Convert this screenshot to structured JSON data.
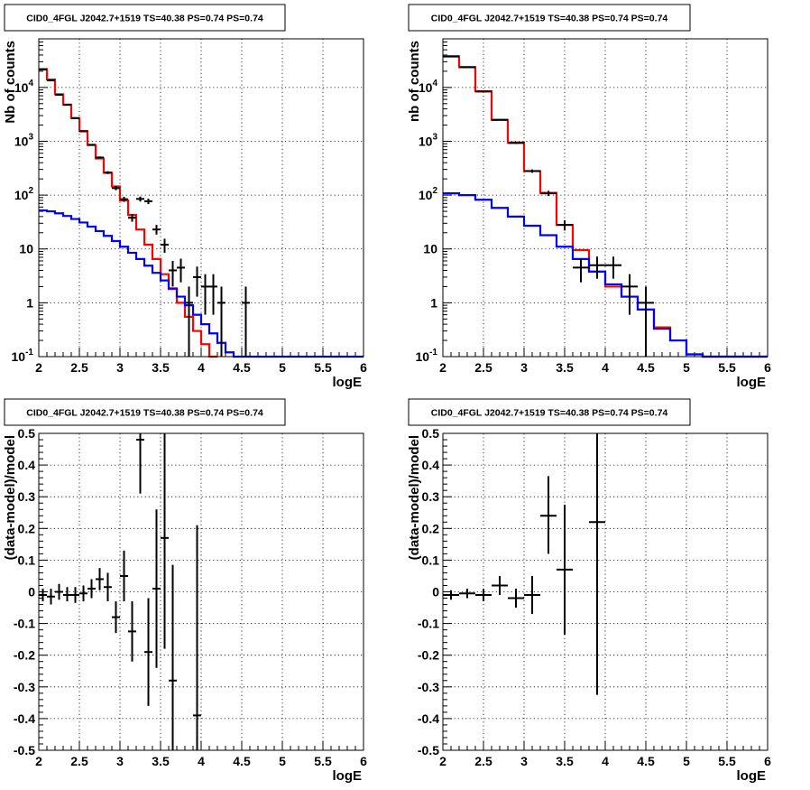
{
  "chart_data": [
    {
      "id": "top-left",
      "type": "histogram",
      "title": "CID0_4FGL J2042.7+1519 TS=40.38 PS=0.74 PS=0.74",
      "xlabel": "logE",
      "ylabel": "Nb of counts",
      "xlim": [
        2,
        6
      ],
      "ylim": [
        0.1,
        80000
      ],
      "yscale": "log",
      "grid": true,
      "x_ticks": [
        "2",
        "2.5",
        "3",
        "3.5",
        "4",
        "4.5",
        "5",
        "5.5",
        "6"
      ],
      "y_ticks": [
        {
          "base": "10",
          "exp": "-1"
        },
        {
          "base": "1",
          "exp": ""
        },
        {
          "base": "10",
          "exp": ""
        },
        {
          "base": "10",
          "exp": "2"
        },
        {
          "base": "10",
          "exp": "3"
        },
        {
          "base": "10",
          "exp": "4"
        }
      ],
      "bin_edges": [
        2.0,
        2.1,
        2.2,
        2.3,
        2.4,
        2.5,
        2.6,
        2.7,
        2.8,
        2.9,
        3.0,
        3.1,
        3.2,
        3.3,
        3.4,
        3.5,
        3.6,
        3.7,
        3.8,
        3.9,
        4.0,
        4.1,
        4.2,
        4.3,
        4.4,
        4.5,
        4.6,
        4.7,
        4.8,
        4.9,
        5.0,
        5.1,
        5.2,
        5.3,
        5.4,
        5.5,
        5.6,
        5.7,
        5.8,
        5.9,
        6.0
      ],
      "series": [
        {
          "color": "#ff0000",
          "kind": "step",
          "values": [
            22000,
            14000,
            7500,
            4800,
            2700,
            1550,
            850,
            480,
            260,
            145,
            80,
            43,
            23,
            12,
            6.5,
            3.4,
            1.8,
            1.0,
            0.55,
            0.3,
            0.17,
            0.1
          ]
        },
        {
          "color": "#0000ff",
          "kind": "step",
          "values": [
            52,
            50,
            46,
            41,
            36,
            31,
            26,
            21.5,
            17.5,
            14,
            11,
            8.5,
            6.5,
            4.9,
            3.6,
            2.6,
            1.85,
            1.3,
            0.9,
            0.6,
            0.4,
            0.27,
            0.18,
            0.12,
            0.1,
            0.1,
            0.1,
            0.1,
            0.1,
            0.1,
            0.1,
            0.1,
            0.1,
            0.1,
            0.1,
            0.1,
            0.1,
            0.1,
            0.1,
            0.1
          ]
        },
        {
          "color": "#000000",
          "kind": "errorbars",
          "xerr": 0.05,
          "points": [
            {
              "x": 2.05,
              "y": 21500,
              "lo": 21300,
              "hi": 21700
            },
            {
              "x": 2.15,
              "y": 13500,
              "lo": 13350,
              "hi": 13650
            },
            {
              "x": 2.25,
              "y": 7300,
              "lo": 7210,
              "hi": 7390
            },
            {
              "x": 2.35,
              "y": 4750,
              "lo": 4680,
              "hi": 4820
            },
            {
              "x": 2.45,
              "y": 2680,
              "lo": 2630,
              "hi": 2730
            },
            {
              "x": 2.55,
              "y": 1530,
              "lo": 1490,
              "hi": 1570
            },
            {
              "x": 2.65,
              "y": 860,
              "lo": 830,
              "hi": 890
            },
            {
              "x": 2.75,
              "y": 500,
              "lo": 478,
              "hi": 522
            },
            {
              "x": 2.85,
              "y": 262,
              "lo": 246,
              "hi": 278
            },
            {
              "x": 2.95,
              "y": 135,
              "lo": 123,
              "hi": 147
            },
            {
              "x": 3.05,
              "y": 84,
              "lo": 75,
              "hi": 93
            },
            {
              "x": 3.15,
              "y": 38,
              "lo": 32,
              "hi": 44
            },
            {
              "x": 3.25,
              "y": 85,
              "lo": 76,
              "hi": 94
            },
            {
              "x": 3.35,
              "y": 77,
              "lo": 68,
              "hi": 86
            },
            {
              "x": 3.45,
              "y": 23,
              "lo": 18.5,
              "hi": 28
            },
            {
              "x": 3.55,
              "y": 12,
              "lo": 8.5,
              "hi": 15.5
            },
            {
              "x": 3.65,
              "y": 4,
              "lo": 2,
              "hi": 6
            },
            {
              "x": 3.75,
              "y": 4.5,
              "lo": 2.4,
              "hi": 6.6
            },
            {
              "x": 3.85,
              "y": 1,
              "lo": 0.1,
              "hi": 2
            },
            {
              "x": 3.95,
              "y": 3,
              "lo": 1.3,
              "hi": 4.7
            },
            {
              "x": 4.05,
              "y": 2,
              "lo": 0.6,
              "hi": 3.4
            },
            {
              "x": 4.15,
              "y": 2,
              "lo": 0.6,
              "hi": 3.4
            },
            {
              "x": 4.25,
              "y": 1,
              "lo": 0.1,
              "hi": 2
            },
            {
              "x": 4.55,
              "y": 1,
              "lo": 0.1,
              "hi": 2
            }
          ]
        }
      ]
    },
    {
      "id": "top-right",
      "type": "histogram",
      "title": "CID0_4FGL J2042.7+1519 TS=40.38 PS=0.74 PS=0.74",
      "xlabel": "logE",
      "ylabel": "nb of counts",
      "xlim": [
        2,
        6
      ],
      "ylim": [
        0.1,
        80000
      ],
      "yscale": "log",
      "grid": true,
      "x_ticks": [
        "2",
        "2.5",
        "3",
        "3.5",
        "4",
        "4.5",
        "5",
        "5.5",
        "6"
      ],
      "y_ticks": [
        {
          "base": "10",
          "exp": "-1"
        },
        {
          "base": "1",
          "exp": ""
        },
        {
          "base": "10",
          "exp": ""
        },
        {
          "base": "10",
          "exp": "2"
        },
        {
          "base": "10",
          "exp": "3"
        },
        {
          "base": "10",
          "exp": "4"
        }
      ],
      "bin_edges": [
        2.0,
        2.2,
        2.4,
        2.6,
        2.8,
        3.0,
        3.2,
        3.4,
        3.6,
        3.8,
        4.0,
        4.2,
        4.4,
        4.6,
        4.8,
        5.0,
        5.2,
        5.4,
        5.6,
        5.8,
        6.0
      ],
      "series": [
        {
          "color": "#ff0000",
          "kind": "step",
          "values": [
            38000,
            24000,
            8500,
            2500,
            950,
            280,
            110,
            28,
            9.5,
            3.8,
            2.0,
            1.3,
            0.75,
            0.35,
            0.2,
            0.11,
            0.1,
            0.1,
            0.1,
            0.1
          ]
        },
        {
          "color": "#0000ff",
          "kind": "step",
          "values": [
            108,
            100,
            82,
            58,
            40,
            27,
            18,
            11,
            6.5,
            3.8,
            2.2,
            1.3,
            0.75,
            0.33,
            0.2,
            0.11,
            0.1,
            0.1,
            0.1,
            0.1
          ]
        },
        {
          "color": "#000000",
          "kind": "errorbars",
          "xerr": 0.1,
          "points": [
            {
              "x": 2.1,
              "y": 37500,
              "lo": 37200,
              "hi": 37800
            },
            {
              "x": 2.3,
              "y": 23700,
              "lo": 23450,
              "hi": 23950
            },
            {
              "x": 2.5,
              "y": 8400,
              "lo": 8250,
              "hi": 8550
            },
            {
              "x": 2.7,
              "y": 2500,
              "lo": 2430,
              "hi": 2570
            },
            {
              "x": 2.9,
              "y": 930,
              "lo": 890,
              "hi": 970
            },
            {
              "x": 3.1,
              "y": 280,
              "lo": 260,
              "hi": 300
            },
            {
              "x": 3.3,
              "y": 108,
              "lo": 96,
              "hi": 120
            },
            {
              "x": 3.5,
              "y": 28,
              "lo": 22,
              "hi": 34
            },
            {
              "x": 3.7,
              "y": 4.5,
              "lo": 2.4,
              "hi": 6.6
            },
            {
              "x": 3.9,
              "y": 5,
              "lo": 2.8,
              "hi": 7.2
            },
            {
              "x": 4.1,
              "y": 5,
              "lo": 2.8,
              "hi": 7.2
            },
            {
              "x": 4.3,
              "y": 2,
              "lo": 0.6,
              "hi": 3.4
            },
            {
              "x": 4.5,
              "y": 1,
              "lo": 0.1,
              "hi": 2
            }
          ]
        }
      ]
    },
    {
      "id": "bottom-left",
      "type": "errorbar",
      "title": "CID0_4FGL J2042.7+1519 TS=40.38 PS=0.74 PS=0.74",
      "xlabel": "logE",
      "ylabel": "(data-model)/model",
      "xlim": [
        2,
        6
      ],
      "ylim": [
        -0.5,
        0.5
      ],
      "yscale": "linear",
      "grid": true,
      "x_ticks": [
        "2",
        "2.5",
        "3",
        "3.5",
        "4",
        "4.5",
        "5",
        "5.5",
        "6"
      ],
      "y_ticks_values": [
        -0.5,
        -0.4,
        -0.3,
        -0.2,
        -0.1,
        0,
        0.1,
        0.2,
        0.3,
        0.4,
        0.5
      ],
      "y_ticks": [
        "-0.5",
        "-0.4",
        "-0.3",
        "-0.2",
        "-0.1",
        "0",
        "0.1",
        "0.2",
        "0.3",
        "0.4",
        "0.5"
      ],
      "series": [
        {
          "color": "#000000",
          "kind": "errorbars",
          "xerr": 0.05,
          "points": [
            {
              "x": 2.05,
              "y": -0.01,
              "lo": -0.03,
              "hi": 0.01
            },
            {
              "x": 2.15,
              "y": -0.015,
              "lo": -0.04,
              "hi": 0.01
            },
            {
              "x": 2.25,
              "y": 0.0,
              "lo": -0.025,
              "hi": 0.025
            },
            {
              "x": 2.35,
              "y": -0.01,
              "lo": -0.03,
              "hi": 0.015
            },
            {
              "x": 2.45,
              "y": -0.01,
              "lo": -0.035,
              "hi": 0.015
            },
            {
              "x": 2.55,
              "y": -0.005,
              "lo": -0.03,
              "hi": 0.02
            },
            {
              "x": 2.65,
              "y": 0.01,
              "lo": -0.02,
              "hi": 0.04
            },
            {
              "x": 2.75,
              "y": 0.04,
              "lo": 0.005,
              "hi": 0.075
            },
            {
              "x": 2.85,
              "y": 0.015,
              "lo": -0.03,
              "hi": 0.06
            },
            {
              "x": 2.95,
              "y": -0.08,
              "lo": -0.13,
              "hi": -0.03
            },
            {
              "x": 3.05,
              "y": 0.05,
              "lo": -0.03,
              "hi": 0.13
            },
            {
              "x": 3.15,
              "y": -0.125,
              "lo": -0.22,
              "hi": -0.03
            },
            {
              "x": 3.25,
              "y": 0.48,
              "lo": 0.31,
              "hi": 0.5
            },
            {
              "x": 3.35,
              "y": -0.19,
              "lo": -0.36,
              "hi": -0.02
            },
            {
              "x": 3.45,
              "y": 0.01,
              "lo": -0.24,
              "hi": 0.26
            },
            {
              "x": 3.55,
              "y": 0.17,
              "lo": -0.18,
              "hi": 0.5
            },
            {
              "x": 3.65,
              "y": -0.28,
              "lo": -0.5,
              "hi": 0.085
            },
            {
              "x": 3.95,
              "y": -0.39,
              "lo": -0.5,
              "hi": 0.21
            }
          ]
        }
      ]
    },
    {
      "id": "bottom-right",
      "type": "errorbar",
      "title": "CID0_4FGL J2042.7+1519 TS=40.38 PS=0.74 PS=0.74",
      "xlabel": "logE",
      "ylabel": "(data-model)/model",
      "xlim": [
        2,
        6
      ],
      "ylim": [
        -0.5,
        0.5
      ],
      "yscale": "linear",
      "grid": true,
      "x_ticks": [
        "2",
        "2.5",
        "3",
        "3.5",
        "4",
        "4.5",
        "5",
        "5.5",
        "6"
      ],
      "y_ticks_values": [
        -0.5,
        -0.4,
        -0.3,
        -0.2,
        -0.1,
        0,
        0.1,
        0.2,
        0.3,
        0.4,
        0.5
      ],
      "y_ticks": [
        "-0.5",
        "-0.4",
        "-0.3",
        "-0.2",
        "-0.1",
        "0",
        "0.1",
        "0.2",
        "0.3",
        "0.4",
        "0.5"
      ],
      "series": [
        {
          "color": "#000000",
          "kind": "errorbars",
          "xerr": 0.1,
          "points": [
            {
              "x": 2.1,
              "y": -0.01,
              "lo": -0.025,
              "hi": 0.005
            },
            {
              "x": 2.3,
              "y": -0.005,
              "lo": -0.02,
              "hi": 0.01
            },
            {
              "x": 2.5,
              "y": -0.01,
              "lo": -0.03,
              "hi": 0.01
            },
            {
              "x": 2.7,
              "y": 0.02,
              "lo": -0.01,
              "hi": 0.05
            },
            {
              "x": 2.9,
              "y": -0.02,
              "lo": -0.05,
              "hi": 0.01
            },
            {
              "x": 3.1,
              "y": -0.01,
              "lo": -0.07,
              "hi": 0.05
            },
            {
              "x": 3.3,
              "y": 0.24,
              "lo": 0.12,
              "hi": 0.365
            },
            {
              "x": 3.5,
              "y": 0.07,
              "lo": -0.135,
              "hi": 0.275
            },
            {
              "x": 3.9,
              "y": 0.22,
              "lo": -0.325,
              "hi": 0.5
            }
          ]
        }
      ]
    }
  ]
}
